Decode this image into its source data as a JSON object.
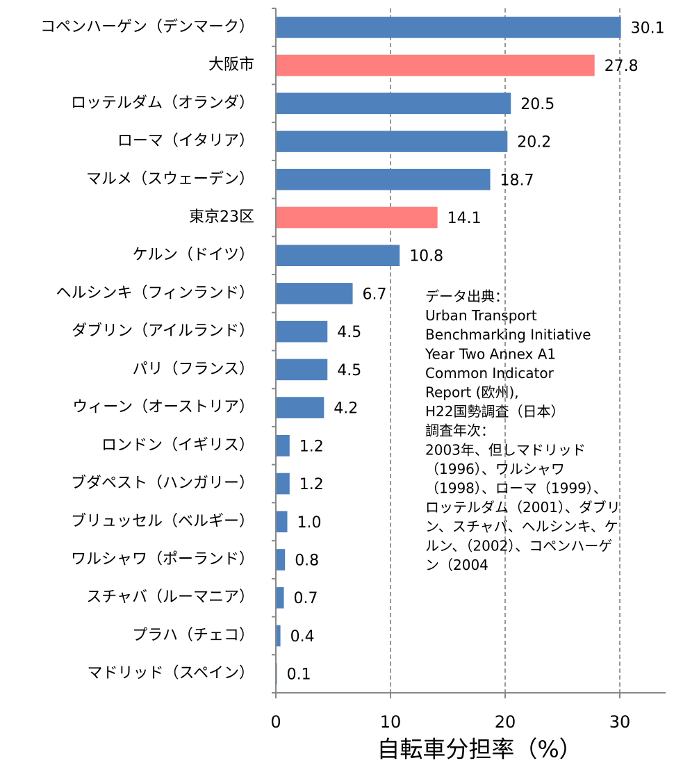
{
  "chart_data": {
    "type": "barh",
    "categories": [
      "コペンハーゲン（デンマーク）",
      "大阪市",
      "ロッテルダム（オランダ）",
      "ローマ（イタリア）",
      "マルメ（スウェーデン）",
      "東京23区",
      "ケルン（ドイツ）",
      "ヘルシンキ（フィンランド）",
      "ダブリン（アイルランド）",
      "パリ（フランス）",
      "ウィーン（オーストリア）",
      "ロンドン（イギリス）",
      "ブダペスト（ハンガリー）",
      "ブリュッセル（ベルギー）",
      "ワルシャワ（ポーランド）",
      "スチャバ（ルーマニア）",
      "プラハ（チェコ）",
      "マドリッド（スペイン）"
    ],
    "values": [
      30.1,
      27.8,
      20.5,
      20.2,
      18.7,
      14.1,
      10.8,
      6.7,
      4.5,
      4.5,
      4.2,
      1.2,
      1.2,
      1.0,
      0.8,
      0.7,
      0.4,
      0.1
    ],
    "value_labels": [
      "30.1",
      "27.8",
      "20.5",
      "20.2",
      "18.7",
      "14.1",
      "10.8",
      "6.7",
      "4.5",
      "4.5",
      "4.2",
      "1.2",
      "1.2",
      "1.0",
      "0.8",
      "0.7",
      "0.4",
      "0.1"
    ],
    "colors": [
      "#4f81bd",
      "#ff7f7f",
      "#4f81bd",
      "#4f81bd",
      "#4f81bd",
      "#ff7f7f",
      "#4f81bd",
      "#4f81bd",
      "#4f81bd",
      "#4f81bd",
      "#4f81bd",
      "#4f81bd",
      "#4f81bd",
      "#4f81bd",
      "#4f81bd",
      "#4f81bd",
      "#4f81bd",
      "#4f81bd"
    ],
    "xlabel": "自転車分担率（%）",
    "xlim": [
      0,
      34
    ],
    "xticks": [
      0,
      10,
      20,
      30
    ],
    "grid": true,
    "annotation": [
      "データ出典：",
      "Urban Transport",
      "Benchmarking Initiative",
      "Year Two Annex A1",
      "Common Indicator",
      "Report (欧州),",
      "H22国勢調査（日本）",
      "調査年次：",
      "2003年、但しマドリッド",
      "（1996）、ワルシャワ",
      "（1998）、ローマ（1999）、",
      "ロッテルダム（2001）、ダブリ",
      "ン、スチャバ、ヘルシンキ、ケ",
      "ルン、（2002）、コペンハーゲ",
      "ン（2004"
    ]
  }
}
